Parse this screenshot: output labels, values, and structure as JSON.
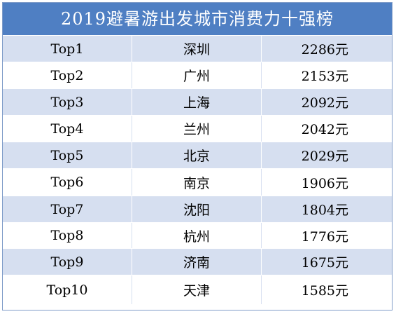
{
  "chart_data": {
    "type": "table",
    "title": "2019避暑游出发城市消费力十强榜",
    "rows": [
      {
        "rank": "Top1",
        "city": "深圳",
        "amount": "2286元"
      },
      {
        "rank": "Top2",
        "city": "广州",
        "amount": "2153元"
      },
      {
        "rank": "Top3",
        "city": "上海",
        "amount": "2092元"
      },
      {
        "rank": "Top4",
        "city": "兰州",
        "amount": "2042元"
      },
      {
        "rank": "Top5",
        "city": "北京",
        "amount": "2029元"
      },
      {
        "rank": "Top6",
        "city": "南京",
        "amount": "1906元"
      },
      {
        "rank": "Top7",
        "city": "沈阳",
        "amount": "1804元"
      },
      {
        "rank": "Top8",
        "city": "杭州",
        "amount": "1776元"
      },
      {
        "rank": "Top9",
        "city": "济南",
        "amount": "1675元"
      },
      {
        "rank": "Top10",
        "city": "天津",
        "amount": "1585元"
      }
    ],
    "colors": {
      "header": "#4f7fc3",
      "row_alt": "#d6dff0",
      "row_plain": "#ffffff",
      "border": "#7f9cc8"
    }
  }
}
